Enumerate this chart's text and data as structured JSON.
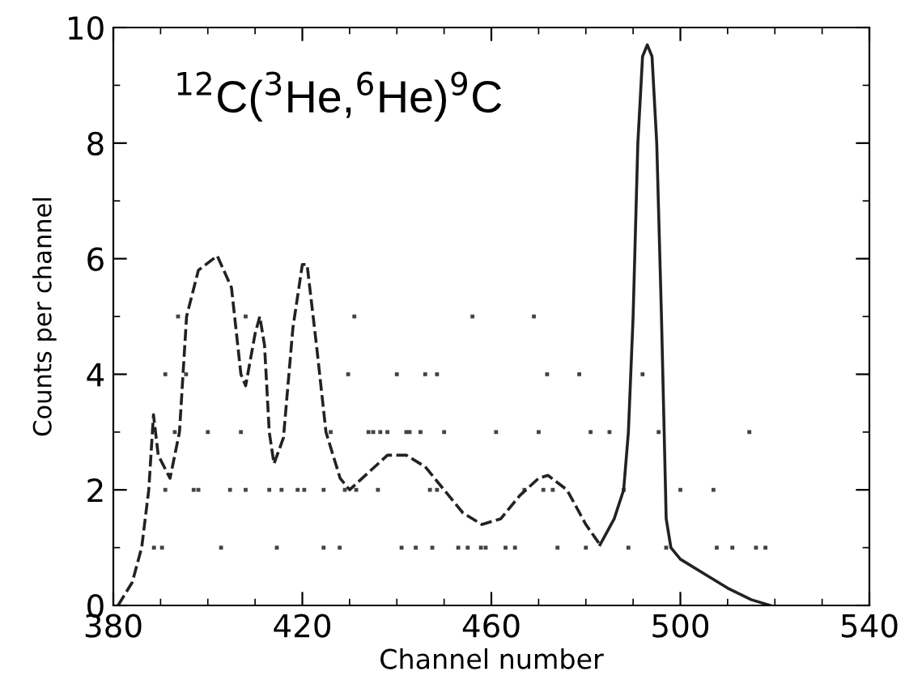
{
  "chart_data": {
    "type": "line",
    "xlabel": "Channel number",
    "ylabel": "Counts per channel",
    "annotations": [
      "$^{12}$C($^{3}$He,$^{6}$He)$^{9}$C"
    ],
    "xlim": [
      380,
      540
    ],
    "xticks": [
      380,
      420,
      460,
      500,
      540
    ],
    "ylim": [
      0,
      10
    ],
    "yticks": [
      0,
      2,
      4,
      6,
      8,
      10
    ],
    "grid": false,
    "series": [
      {
        "line_style": "dashed",
        "color": "#222222",
        "x": [
          381,
          384,
          386,
          387.5,
          388.5,
          389.5,
          392,
          394,
          395.5,
          398,
          402,
          405,
          407,
          408,
          410,
          411,
          412,
          413,
          414,
          416,
          418,
          420,
          421,
          423,
          425,
          428,
          430,
          434,
          438,
          442,
          446,
          450,
          454,
          458,
          462,
          466,
          470,
          472,
          476,
          480,
          483
        ],
        "values": [
          0,
          0.4,
          1,
          2,
          3.3,
          2.6,
          2.2,
          3,
          5,
          5.8,
          6.05,
          5.5,
          4,
          3.8,
          4.7,
          5.0,
          4.5,
          3,
          2.45,
          2.9,
          4.8,
          5.9,
          5.9,
          4.5,
          3,
          2.2,
          2,
          2.3,
          2.6,
          2.6,
          2.4,
          2.0,
          1.6,
          1.4,
          1.5,
          1.9,
          2.2,
          2.25,
          2.0,
          1.4,
          1.05
        ]
      },
      {
        "type": "line",
        "line_style": "solid",
        "color": "#222222",
        "x": [
          483,
          486,
          488,
          489,
          490,
          491,
          492,
          493,
          494,
          495,
          496,
          497,
          498,
          500,
          505,
          510,
          515,
          519
        ],
        "values": [
          1.05,
          1.5,
          2.0,
          3,
          5,
          8,
          9.5,
          9.7,
          9.5,
          8,
          5,
          1.5,
          1.0,
          0.8,
          0.55,
          0.3,
          0.1,
          0
        ]
      },
      {
        "type": "scatter",
        "marker": "square",
        "color": "#444444",
        "x": [
          388.6,
          390.3,
          402.8,
          414.6,
          424.5,
          427.9,
          441,
          444,
          447.5,
          453,
          455,
          457.8,
          458.8,
          463,
          465,
          474,
          480,
          489,
          497,
          507.7,
          511,
          516,
          518,
          391,
          397,
          398,
          404.7,
          408,
          413,
          415.6,
          419,
          420.4,
          424.5,
          429,
          431.4,
          436,
          447,
          448.5,
          467,
          471,
          473,
          488,
          500,
          507,
          393,
          400,
          407,
          426,
          434,
          435,
          436.5,
          438,
          442,
          442.7,
          445,
          450,
          461,
          470,
          481,
          485,
          495.4,
          514.6,
          391,
          395.4,
          429.7,
          440,
          446,
          448.5,
          471.8,
          478.6,
          492,
          393.7,
          408,
          431,
          456,
          469
        ],
        "values": [
          1,
          1,
          1,
          1,
          1,
          1,
          1,
          1,
          1,
          1,
          1,
          1,
          1,
          1,
          1,
          1,
          1,
          1,
          1,
          1,
          1,
          1,
          1,
          2,
          2,
          2,
          2,
          2,
          2,
          2,
          2,
          2,
          2,
          2,
          2,
          2,
          2,
          2,
          2,
          2,
          2,
          2,
          2,
          2,
          3,
          3,
          3,
          3,
          3,
          3,
          3,
          3,
          3,
          3,
          3,
          3,
          3,
          3,
          3,
          3,
          3,
          3,
          4,
          4,
          4,
          4,
          4,
          4,
          4,
          4,
          4,
          5,
          5,
          5,
          5,
          5
        ]
      }
    ]
  }
}
